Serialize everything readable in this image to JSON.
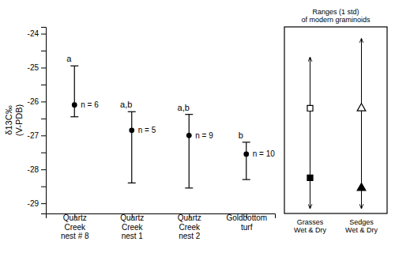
{
  "chart_data": {
    "type": "errorbar",
    "categories": [
      "Quartz\nCreek\nnest # 8",
      "Quartz\nCreek\nnest 1",
      "Quartz\nCreek\nnest 2",
      "Goldbottom\nturf"
    ],
    "values": [
      -26.1,
      -26.85,
      -27.0,
      -27.55
    ],
    "errors_upper": [
      1.15,
      0.55,
      0.62,
      0.35
    ],
    "errors_lower": [
      0.35,
      1.55,
      1.55,
      0.75
    ],
    "stat_labels": [
      "a",
      "a,b",
      "a,b",
      "b"
    ],
    "n_labels": [
      "n = 6",
      "n = 5",
      "n = 9",
      "n = 10"
    ],
    "color": "black",
    "marker": "circle",
    "ylabel": "δ13C‰\n(V-PDB)",
    "ylim": [
      -29.3,
      -23.8
    ],
    "yticks": [
      -29,
      {
        "value": -28.5,
        "label": null
      },
      -28,
      {
        "value": -27.5,
        "label": null
      },
      -27,
      {
        "value": -26.5,
        "label": null
      },
      -26,
      {
        "value": -25.5,
        "label": null
      },
      -25,
      {
        "value": -24.5,
        "label": null
      },
      -24
    ],
    "inset": {
      "title": "Ranges (1 std)\nof modern graminoids",
      "groups": [
        {
          "label": "Grasses\nWet & Dry",
          "marker": "square",
          "range": [
            -24.7,
            -29.15
          ],
          "wet": -28.25,
          "dry": -26.2
        },
        {
          "label": "Sedges\nWet & Dry",
          "marker": "triangle",
          "range": [
            -24.15,
            -29.15
          ],
          "wet": -28.55,
          "dry": -26.2
        }
      ]
    }
  }
}
